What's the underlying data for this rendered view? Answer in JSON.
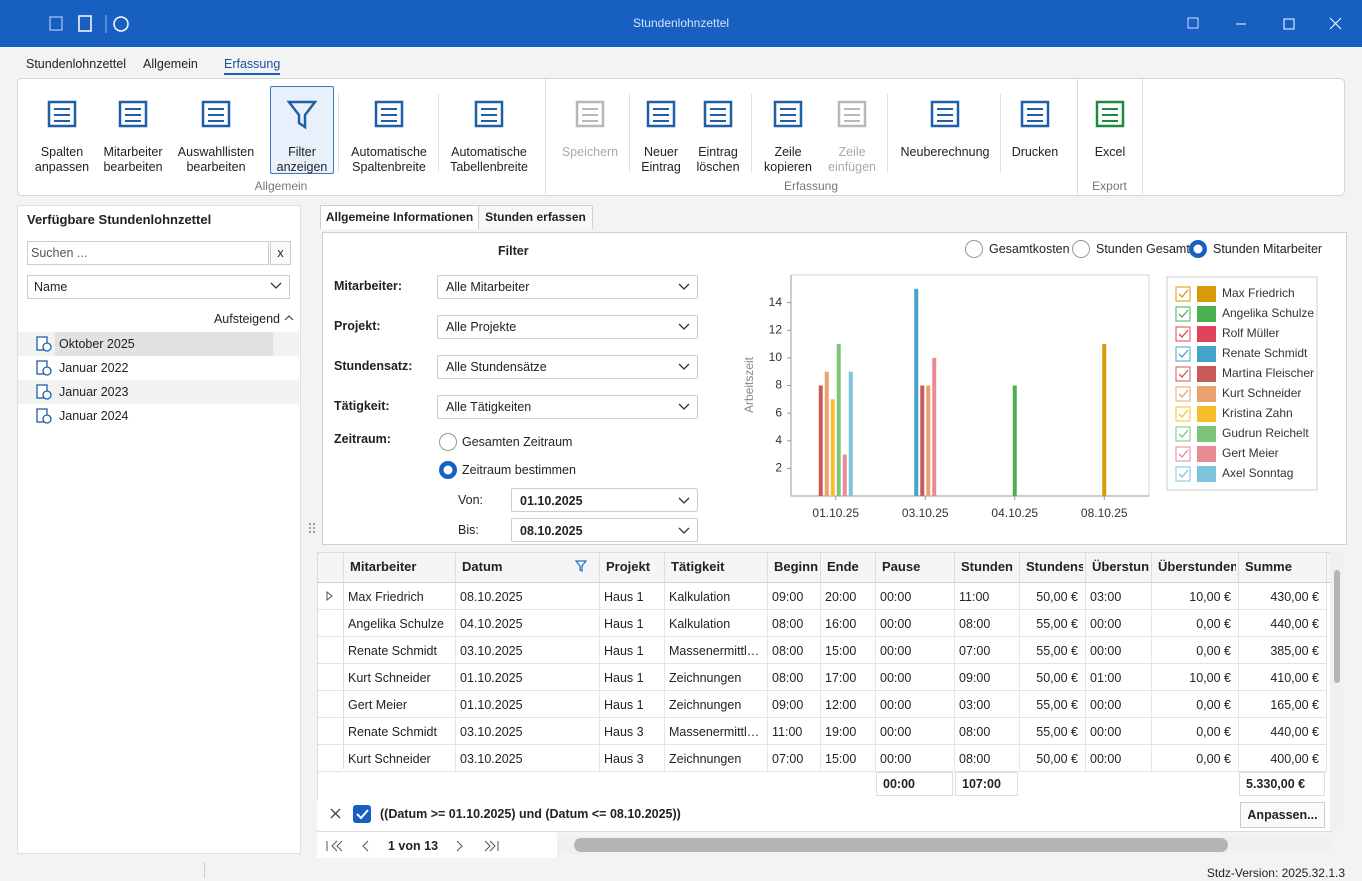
{
  "window": {
    "title": "Stundenlohnzettel"
  },
  "ribbon": {
    "tabs": [
      "Stundenlohnzettel",
      "Allgemein",
      "Erfassung"
    ],
    "active_tab": 2,
    "groups": [
      {
        "label": "Allgemein",
        "buttons": [
          {
            "label": "Spalten\nanpassen",
            "enabled": true
          },
          {
            "label": "Mitarbeiter\nbearbeiten",
            "enabled": true
          },
          {
            "label": "Auswahllisten\nbearbeiten",
            "enabled": true
          },
          {
            "label": "Filter\nanzeigen",
            "enabled": true,
            "pressed": true
          },
          {
            "label": "Automatische\nSpaltenbreite",
            "enabled": true
          },
          {
            "label": "Automatische\nTabellenbreite",
            "enabled": true
          }
        ]
      },
      {
        "label": "Erfassung",
        "buttons": [
          {
            "label": "Speichern",
            "enabled": false
          },
          {
            "label": "Neuer\nEintrag",
            "enabled": true
          },
          {
            "label": "Eintrag\nlöschen",
            "enabled": true
          },
          {
            "label": "Zeile\nkopieren",
            "enabled": true
          },
          {
            "label": "Zeile\neinfügen",
            "enabled": false
          },
          {
            "label": "Neuberechnung",
            "enabled": true
          },
          {
            "label": "Drucken",
            "enabled": true
          }
        ]
      },
      {
        "label": "Export",
        "buttons": [
          {
            "label": "Excel",
            "enabled": true
          }
        ]
      }
    ]
  },
  "sidebar": {
    "title": "Verfügbare Stundenlohnzettel",
    "search_placeholder": "Suchen ...",
    "clear": "x",
    "sort_field": "Name",
    "sort_order": "Aufsteigend",
    "items": [
      "Oktober 2025",
      "Januar 2022",
      "Januar 2023",
      "Januar 2024"
    ],
    "selected": 0
  },
  "tabs": {
    "items": [
      "Allgemeine Informationen",
      "Stunden erfassen"
    ],
    "active": 0
  },
  "filter": {
    "title": "Filter",
    "fields": [
      {
        "label": "Mitarbeiter:",
        "value": "Alle Mitarbeiter"
      },
      {
        "label": "Projekt:",
        "value": "Alle Projekte"
      },
      {
        "label": "Stundensatz:",
        "value": "Alle Stundensätze"
      },
      {
        "label": "Tätigkeit:",
        "value": "Alle Tätigkeiten"
      }
    ],
    "period": {
      "label": "Zeitraum:",
      "options": [
        "Gesamten Zeitraum",
        "Zeitraum bestimmen"
      ],
      "selected": 1,
      "from_label": "Von:",
      "from": "01.10.2025",
      "to_label": "Bis:",
      "to": "08.10.2025"
    }
  },
  "chart_options": {
    "options": [
      "Gesamtkosten",
      "Stunden Gesamt",
      "Stunden Mitarbeiter"
    ],
    "selected": 2
  },
  "chart_data": {
    "type": "bar",
    "y_label": "Arbeitszeit",
    "categories": [
      "01.10.25",
      "03.10.25",
      "04.10.25",
      "08.10.25"
    ],
    "series": [
      {
        "name": "Max Friedrich",
        "color": "#d69a0b",
        "values": [
          null,
          null,
          null,
          11
        ]
      },
      {
        "name": "Angelika Schulze",
        "color": "#4caf50",
        "values": [
          null,
          null,
          8,
          null
        ]
      },
      {
        "name": "Rolf Müller",
        "color": "#e0435a",
        "values": [
          null,
          null,
          null,
          null
        ]
      },
      {
        "name": "Renate Schmidt",
        "color": "#45a3c9",
        "values": [
          null,
          15,
          null,
          null
        ]
      },
      {
        "name": "Martina Fleischer",
        "color": "#c95a5a",
        "values": [
          8,
          8,
          null,
          null
        ]
      },
      {
        "name": "Kurt Schneider",
        "color": "#eba070",
        "values": [
          9,
          8,
          null,
          null
        ]
      },
      {
        "name": "Kristina Zahn",
        "color": "#f7be2a",
        "values": [
          7,
          null,
          null,
          null
        ]
      },
      {
        "name": "Gudrun Reichelt",
        "color": "#7cc47a",
        "values": [
          11,
          null,
          null,
          null
        ]
      },
      {
        "name": "Gert Meier",
        "color": "#ea8a95",
        "values": [
          3,
          10,
          null,
          null
        ]
      },
      {
        "name": "Axel Sonntag",
        "color": "#7ec3dc",
        "values": [
          9,
          null,
          null,
          null
        ]
      }
    ],
    "ylim": [
      0,
      16
    ],
    "yticks": [
      2,
      4,
      6,
      8,
      10,
      12,
      14
    ],
    "grid": false
  },
  "grid": {
    "columns": [
      "Mitarbeiter",
      "Datum",
      "Projekt",
      "Tätigkeit",
      "Beginn",
      "Ende",
      "Pause",
      "Stunden",
      "Stundensatz",
      "Überstunden",
      "Überstunden €",
      "Summe"
    ],
    "rows": [
      [
        "Max Friedrich",
        "08.10.2025",
        "Haus 1",
        "Kalkulation",
        "09:00",
        "20:00",
        "00:00",
        "11:00",
        "50,00 €",
        "03:00",
        "10,00 €",
        "430,00 €"
      ],
      [
        "Angelika Schulze",
        "04.10.2025",
        "Haus 1",
        "Kalkulation",
        "08:00",
        "16:00",
        "00:00",
        "08:00",
        "55,00 €",
        "00:00",
        "0,00 €",
        "440,00 €"
      ],
      [
        "Renate Schmidt",
        "03.10.2025",
        "Haus 1",
        "Massenermittlung",
        "08:00",
        "15:00",
        "00:00",
        "07:00",
        "55,00 €",
        "00:00",
        "0,00 €",
        "385,00 €"
      ],
      [
        "Kurt Schneider",
        "01.10.2025",
        "Haus 1",
        "Zeichnungen",
        "08:00",
        "17:00",
        "00:00",
        "09:00",
        "50,00 €",
        "01:00",
        "10,00 €",
        "410,00 €"
      ],
      [
        "Gert Meier",
        "01.10.2025",
        "Haus 1",
        "Zeichnungen",
        "09:00",
        "12:00",
        "00:00",
        "03:00",
        "55,00 €",
        "00:00",
        "0,00 €",
        "165,00 €"
      ],
      [
        "Renate Schmidt",
        "03.10.2025",
        "Haus 3",
        "Massenermittlung",
        "11:00",
        "19:00",
        "00:00",
        "08:00",
        "55,00 €",
        "00:00",
        "0,00 €",
        "440,00 €"
      ],
      [
        "Kurt Schneider",
        "03.10.2025",
        "Haus 3",
        "Zeichnungen",
        "07:00",
        "15:00",
        "00:00",
        "08:00",
        "50,00 €",
        "00:00",
        "0,00 €",
        "400,00 €"
      ]
    ],
    "totals": [
      null,
      null,
      null,
      null,
      null,
      null,
      "00:00",
      "107:00",
      null,
      null,
      null,
      "5.330,00 €"
    ]
  },
  "filter_bar": {
    "expression": "((Datum >= 01.10.2025) und (Datum <= 08.10.2025))",
    "button": "Anpassen..."
  },
  "pager": {
    "text": "1 von 13"
  },
  "status": {
    "version": "Stdz-Version: 2025.32.1.3"
  }
}
